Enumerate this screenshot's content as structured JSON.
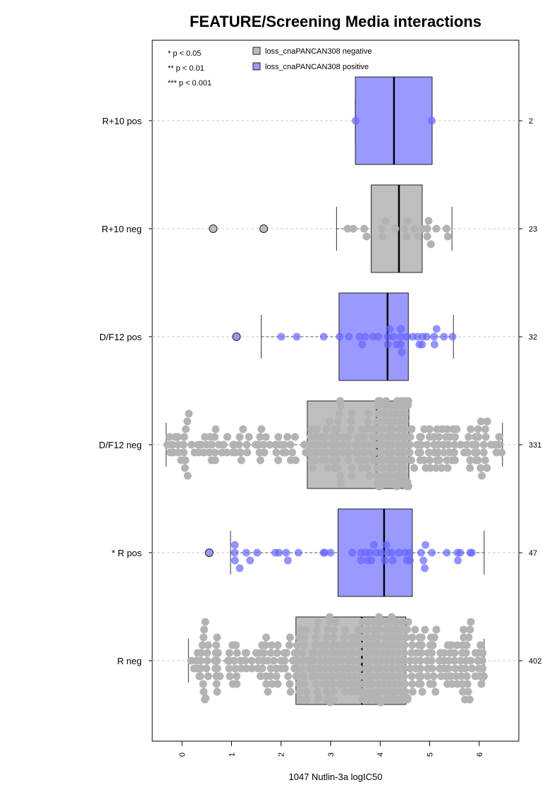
{
  "chart_data": {
    "type": "box-swarm",
    "title": "FEATURE/Screening Media interactions",
    "xlabel": "1047 Nutlin-3a logIC50",
    "xlim": [
      -0.6,
      6.8
    ],
    "xticks": [
      "0",
      "1",
      "2",
      "3",
      "4",
      "5",
      "6"
    ],
    "xtick_values": [
      0,
      1,
      2,
      3,
      4,
      5,
      6
    ],
    "significance_legend": [
      "* p < 0.05",
      "** p < 0.01",
      "*** p < 0.001"
    ],
    "legend": [
      {
        "label": "loss_cnaPANCAN308 negative",
        "color": "#bebebe"
      },
      {
        "label": "loss_cnaPANCAN308 positive",
        "color": "#9999ff"
      }
    ],
    "colors": {
      "negative_box": "#bebebe",
      "positive_box": "#9999ff",
      "negative_point": "#b3b3b3",
      "positive_point": "#6666ff"
    },
    "groups": [
      {
        "label": "R+10 pos",
        "n": "2",
        "status": "positive",
        "q1": 3.5,
        "median": 4.28,
        "q3": 5.05,
        "whisker_low": 3.5,
        "whisker_high": 5.05,
        "outliers": []
      },
      {
        "label": "R+10 neg",
        "n": "23",
        "status": "negative",
        "q1": 3.82,
        "median": 4.38,
        "q3": 4.85,
        "whisker_low": 3.12,
        "whisker_high": 5.45,
        "outliers": [
          0.63,
          1.65
        ]
      },
      {
        "label": "D/F12 pos",
        "n": "32",
        "status": "positive",
        "q1": 3.17,
        "median": 4.15,
        "q3": 4.57,
        "whisker_low": 1.6,
        "whisker_high": 5.48,
        "outliers": [
          1.1
        ]
      },
      {
        "label": "D/F12 neg",
        "n": "331",
        "status": "negative",
        "q1": 2.53,
        "median": 3.93,
        "q3": 4.58,
        "whisker_low": -0.32,
        "whisker_high": 6.47,
        "outliers": []
      },
      {
        "label": "* R pos",
        "n": "47",
        "status": "positive",
        "q1": 3.15,
        "median": 4.08,
        "q3": 4.65,
        "whisker_low": 0.98,
        "whisker_high": 6.1,
        "outliers": [
          0.55
        ]
      },
      {
        "label": "R neg",
        "n": "402",
        "status": "negative",
        "q1": 2.3,
        "median": 3.63,
        "q3": 4.52,
        "whisker_low": 0.13,
        "whisker_high": 6.1,
        "outliers": []
      }
    ]
  }
}
